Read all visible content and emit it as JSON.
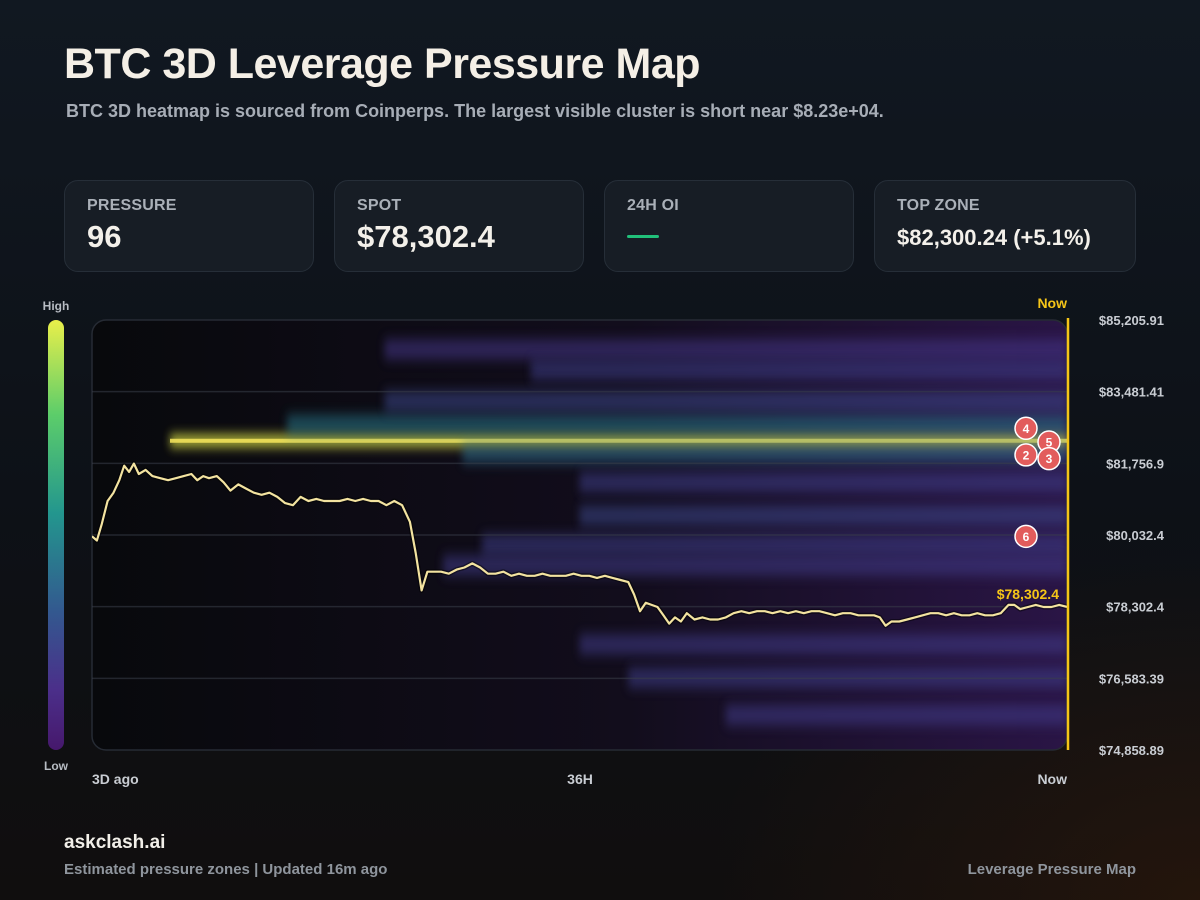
{
  "header": {
    "title": "BTC 3D Leverage Pressure Map",
    "subtitle": "BTC 3D heatmap is sourced from Coinperps. The largest visible cluster is short near $8.23e+04."
  },
  "stats": {
    "pressure": {
      "label": "PRESSURE",
      "value": "96"
    },
    "spot": {
      "label": "SPOT",
      "value": "$78,302.4"
    },
    "oi": {
      "label": "24H OI",
      "value": "—",
      "indicator_color": "#21c07a"
    },
    "top_zone": {
      "label": "TOP ZONE",
      "value": "$82,300.24 (+5.1%)"
    }
  },
  "legend": {
    "high_label": "High",
    "low_label": "Low",
    "colors": [
      "#e9ef4a",
      "#5ccd6a",
      "#23968e",
      "#33588f",
      "#4b2f8a",
      "#46186c"
    ]
  },
  "chart_data": {
    "type": "heatmap",
    "title": "BTC 3D Leverage Pressure Map",
    "ylim": [
      74858.89,
      85205.91
    ],
    "y_ticks": [
      "$85,205.91",
      "$83,481.41",
      "$81,756.9",
      "$80,032.4",
      "$78,302.4",
      "$76,583.39",
      "$74,858.89"
    ],
    "x_ticks": [
      "3D ago",
      "36H",
      "Now"
    ],
    "now_label": "Now",
    "spot_price": 78302.4,
    "spot_label": "$78,302.4",
    "line_color": "#f3e3a0",
    "accent_color": "#f5c518",
    "zone_color": "#e25c5c",
    "zones": [
      {
        "label": "4",
        "price": 82600
      },
      {
        "label": "5",
        "price": 82270
      },
      {
        "label": "2",
        "price": 81960
      },
      {
        "label": "3",
        "price": 81870
      },
      {
        "label": "6",
        "price": 80000
      }
    ],
    "clusters": [
      {
        "price": 82300,
        "start_frac": 0.08,
        "end_frac": 1.0,
        "intensity": 1.0
      },
      {
        "price": 82680,
        "start_frac": 0.2,
        "end_frac": 1.0,
        "intensity": 0.45
      },
      {
        "price": 82000,
        "start_frac": 0.38,
        "end_frac": 1.0,
        "intensity": 0.4
      },
      {
        "price": 83250,
        "start_frac": 0.3,
        "end_frac": 1.0,
        "intensity": 0.25
      },
      {
        "price": 84500,
        "start_frac": 0.3,
        "end_frac": 1.0,
        "intensity": 0.18
      },
      {
        "price": 84000,
        "start_frac": 0.45,
        "end_frac": 1.0,
        "intensity": 0.22
      },
      {
        "price": 81300,
        "start_frac": 0.5,
        "end_frac": 1.0,
        "intensity": 0.22
      },
      {
        "price": 80500,
        "start_frac": 0.5,
        "end_frac": 1.0,
        "intensity": 0.25
      },
      {
        "price": 79800,
        "start_frac": 0.4,
        "end_frac": 1.0,
        "intensity": 0.22
      },
      {
        "price": 79300,
        "start_frac": 0.36,
        "end_frac": 1.0,
        "intensity": 0.2
      },
      {
        "price": 77400,
        "start_frac": 0.5,
        "end_frac": 1.0,
        "intensity": 0.2
      },
      {
        "price": 76600,
        "start_frac": 0.55,
        "end_frac": 1.0,
        "intensity": 0.22
      },
      {
        "price": 75700,
        "start_frac": 0.65,
        "end_frac": 1.0,
        "intensity": 0.2
      }
    ],
    "series": [
      {
        "values": [
          [
            0.0,
            80000
          ],
          [
            0.005,
            79900
          ],
          [
            0.01,
            80300
          ],
          [
            0.016,
            80850
          ],
          [
            0.022,
            81050
          ],
          [
            0.028,
            81350
          ],
          [
            0.033,
            81700
          ],
          [
            0.038,
            81550
          ],
          [
            0.043,
            81750
          ],
          [
            0.048,
            81500
          ],
          [
            0.055,
            81600
          ],
          [
            0.062,
            81450
          ],
          [
            0.07,
            81400
          ],
          [
            0.078,
            81350
          ],
          [
            0.086,
            81400
          ],
          [
            0.094,
            81450
          ],
          [
            0.102,
            81500
          ],
          [
            0.108,
            81350
          ],
          [
            0.114,
            81450
          ],
          [
            0.12,
            81400
          ],
          [
            0.128,
            81450
          ],
          [
            0.135,
            81300
          ],
          [
            0.142,
            81100
          ],
          [
            0.15,
            81250
          ],
          [
            0.158,
            81150
          ],
          [
            0.166,
            81050
          ],
          [
            0.174,
            81000
          ],
          [
            0.182,
            81050
          ],
          [
            0.19,
            80950
          ],
          [
            0.198,
            80800
          ],
          [
            0.206,
            80750
          ],
          [
            0.214,
            80950
          ],
          [
            0.222,
            80850
          ],
          [
            0.23,
            80900
          ],
          [
            0.238,
            80850
          ],
          [
            0.246,
            80850
          ],
          [
            0.254,
            80850
          ],
          [
            0.262,
            80900
          ],
          [
            0.27,
            80850
          ],
          [
            0.278,
            80900
          ],
          [
            0.286,
            80850
          ],
          [
            0.294,
            80850
          ],
          [
            0.302,
            80750
          ],
          [
            0.31,
            80850
          ],
          [
            0.318,
            80750
          ],
          [
            0.326,
            80350
          ],
          [
            0.332,
            79600
          ],
          [
            0.338,
            78700
          ],
          [
            0.344,
            79150
          ],
          [
            0.35,
            79150
          ],
          [
            0.358,
            79150
          ],
          [
            0.366,
            79100
          ],
          [
            0.374,
            79200
          ],
          [
            0.382,
            79250
          ],
          [
            0.39,
            79350
          ],
          [
            0.398,
            79250
          ],
          [
            0.406,
            79100
          ],
          [
            0.414,
            79100
          ],
          [
            0.422,
            79150
          ],
          [
            0.43,
            79050
          ],
          [
            0.438,
            79100
          ],
          [
            0.446,
            79050
          ],
          [
            0.454,
            79050
          ],
          [
            0.462,
            79100
          ],
          [
            0.47,
            79050
          ],
          [
            0.478,
            79050
          ],
          [
            0.486,
            79050
          ],
          [
            0.494,
            79100
          ],
          [
            0.502,
            79050
          ],
          [
            0.51,
            79050
          ],
          [
            0.518,
            79000
          ],
          [
            0.526,
            79050
          ],
          [
            0.534,
            79000
          ],
          [
            0.542,
            78950
          ],
          [
            0.55,
            78900
          ],
          [
            0.556,
            78600
          ],
          [
            0.562,
            78200
          ],
          [
            0.568,
            78400
          ],
          [
            0.574,
            78350
          ],
          [
            0.58,
            78300
          ],
          [
            0.586,
            78100
          ],
          [
            0.592,
            77900
          ],
          [
            0.598,
            78050
          ],
          [
            0.604,
            77950
          ],
          [
            0.61,
            78150
          ],
          [
            0.618,
            78000
          ],
          [
            0.626,
            78050
          ],
          [
            0.634,
            78000
          ],
          [
            0.642,
            78000
          ],
          [
            0.65,
            78050
          ],
          [
            0.658,
            78150
          ],
          [
            0.666,
            78200
          ],
          [
            0.674,
            78150
          ],
          [
            0.682,
            78200
          ],
          [
            0.69,
            78200
          ],
          [
            0.698,
            78150
          ],
          [
            0.706,
            78200
          ],
          [
            0.714,
            78150
          ],
          [
            0.722,
            78200
          ],
          [
            0.73,
            78150
          ],
          [
            0.738,
            78200
          ],
          [
            0.746,
            78200
          ],
          [
            0.754,
            78150
          ],
          [
            0.762,
            78100
          ],
          [
            0.77,
            78150
          ],
          [
            0.778,
            78150
          ],
          [
            0.786,
            78100
          ],
          [
            0.794,
            78100
          ],
          [
            0.802,
            78100
          ],
          [
            0.808,
            78050
          ],
          [
            0.814,
            77850
          ],
          [
            0.82,
            77950
          ],
          [
            0.828,
            77950
          ],
          [
            0.836,
            78000
          ],
          [
            0.844,
            78050
          ],
          [
            0.852,
            78100
          ],
          [
            0.86,
            78150
          ],
          [
            0.868,
            78150
          ],
          [
            0.876,
            78100
          ],
          [
            0.884,
            78150
          ],
          [
            0.892,
            78100
          ],
          [
            0.9,
            78100
          ],
          [
            0.908,
            78150
          ],
          [
            0.916,
            78100
          ],
          [
            0.924,
            78100
          ],
          [
            0.932,
            78150
          ],
          [
            0.94,
            78350
          ],
          [
            0.946,
            78350
          ],
          [
            0.952,
            78250
          ],
          [
            0.96,
            78300
          ],
          [
            0.968,
            78350
          ],
          [
            0.976,
            78300
          ],
          [
            0.984,
            78300
          ],
          [
            0.992,
            78350
          ],
          [
            1.0,
            78302
          ]
        ]
      }
    ]
  },
  "footer": {
    "brand": "askclash.ai",
    "note": "Estimated pressure zones | Updated 16m ago",
    "right_label": "Leverage Pressure Map"
  }
}
